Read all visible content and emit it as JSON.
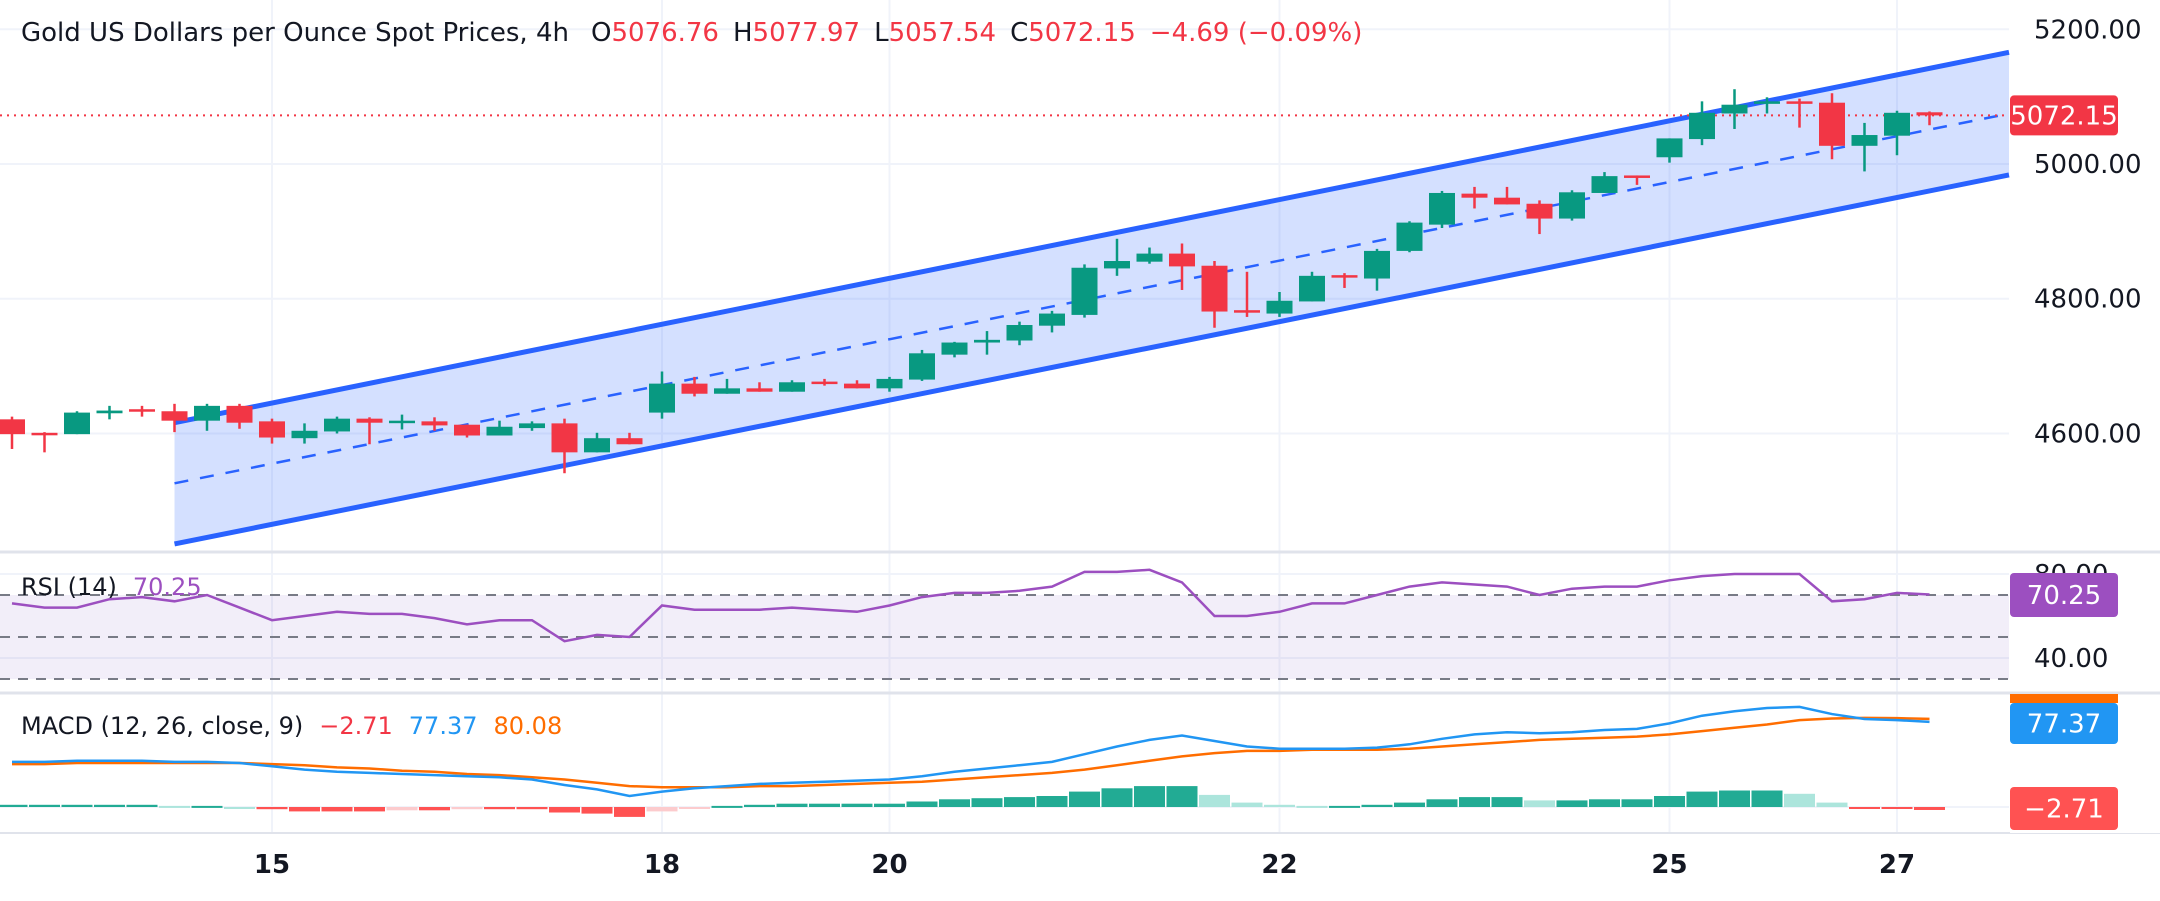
{
  "header": {
    "title": "Gold US Dollars per Ounce Spot Prices, 4h",
    "o_label": "O",
    "open": "5076.76",
    "h_label": "H",
    "high": "5077.97",
    "l_label": "L",
    "low": "5057.54",
    "c_label": "C",
    "close": "5072.15",
    "change": "−4.69 (−0.09%)"
  },
  "colors": {
    "up": "#089981",
    "down": "#f23645",
    "channel": "#2962ff",
    "channel_fill": "rgba(41,98,255,0.2)",
    "rsi": "#9c4fc0",
    "rsi_band": "rgba(126,87,194,0.1)",
    "macd": "#2196f3",
    "signal": "#ff6d00",
    "hist_up_strong": "#22ab94",
    "hist_up_weak": "#ace5dc",
    "hist_down_strong": "#ff5252",
    "hist_down_weak": "#fccbcd",
    "grid": "#f0f3fa",
    "divider": "#e0e3eb"
  },
  "rsi_legend": {
    "label": "RSI (14)",
    "value": "70.25"
  },
  "macd_legend": {
    "label": "MACD (12, 26, close, 9)",
    "hist": "−2.71",
    "macd": "77.37",
    "signal": "80.08"
  },
  "badges": {
    "price": "5072.15",
    "rsi": "70.25",
    "macd": "77.37",
    "hist": "−2.71"
  },
  "chart_data": [
    {
      "type": "candlestick",
      "title": "Gold US Dollars per Ounce Spot Prices, 4h",
      "y_ticks": [
        "5200.00",
        "5000.00",
        "4800.00",
        "4600.00"
      ],
      "y_tick_values": [
        5200,
        5000,
        4800,
        4600
      ],
      "ylim": [
        4400,
        5240
      ],
      "x_ticks": [
        {
          "label": "15",
          "bar": 9
        },
        {
          "label": "18",
          "bar": 21
        },
        {
          "label": "20",
          "bar": 28
        },
        {
          "label": "22",
          "bar": 40
        },
        {
          "label": "25",
          "bar": 52
        },
        {
          "label": "27",
          "bar": 59
        }
      ],
      "last_price": 5072.15,
      "grid": true,
      "ohlc": [
        [
          4621,
          4625,
          4577,
          4599
        ],
        [
          4601,
          4602,
          4572,
          4598
        ],
        [
          4599,
          4633,
          4599,
          4631
        ],
        [
          4630,
          4641,
          4621,
          4634
        ],
        [
          4636,
          4641,
          4625,
          4633
        ],
        [
          4633,
          4644,
          4602,
          4619
        ],
        [
          4619,
          4644,
          4604,
          4641
        ],
        [
          4641,
          4644,
          4607,
          4616
        ],
        [
          4618,
          4622,
          4585,
          4594
        ],
        [
          4593,
          4615,
          4585,
          4604
        ],
        [
          4603,
          4625,
          4600,
          4622
        ],
        [
          4622,
          4624,
          4584,
          4616
        ],
        [
          4616,
          4628,
          4606,
          4619
        ],
        [
          4618,
          4624,
          4604,
          4612
        ],
        [
          4613,
          4613,
          4594,
          4597
        ],
        [
          4597,
          4619,
          4597,
          4610
        ],
        [
          4608,
          4618,
          4604,
          4615
        ],
        [
          4615,
          4622,
          4541,
          4572
        ],
        [
          4572,
          4601,
          4572,
          4593
        ],
        [
          4593,
          4601,
          4584,
          4584
        ],
        [
          4631,
          4692,
          4622,
          4674
        ],
        [
          4674,
          4684,
          4655,
          4659
        ],
        [
          4659,
          4681,
          4659,
          4667
        ],
        [
          4667,
          4676,
          4662,
          4662
        ],
        [
          4662,
          4679,
          4662,
          4676
        ],
        [
          4677,
          4681,
          4671,
          4674
        ],
        [
          4674,
          4679,
          4667,
          4667
        ],
        [
          4667,
          4684,
          4662,
          4681
        ],
        [
          4680,
          4724,
          4678,
          4719
        ],
        [
          4717,
          4736,
          4713,
          4735
        ],
        [
          4735,
          4752,
          4717,
          4739
        ],
        [
          4738,
          4766,
          4731,
          4761
        ],
        [
          4760,
          4782,
          4750,
          4778
        ],
        [
          4776,
          4851,
          4772,
          4846
        ],
        [
          4845,
          4889,
          4834,
          4856
        ],
        [
          4855,
          4876,
          4852,
          4867
        ],
        [
          4867,
          4882,
          4813,
          4848
        ],
        [
          4849,
          4856,
          4757,
          4781
        ],
        [
          4783,
          4840,
          4773,
          4781
        ],
        [
          4778,
          4810,
          4773,
          4797
        ],
        [
          4796,
          4840,
          4796,
          4834
        ],
        [
          4835,
          4838,
          4816,
          4833
        ],
        [
          4830,
          4874,
          4812,
          4871
        ],
        [
          4871,
          4915,
          4869,
          4913
        ],
        [
          4910,
          4960,
          4905,
          4957
        ],
        [
          4956,
          4966,
          4934,
          4950
        ],
        [
          4950,
          4966,
          4940,
          4940
        ],
        [
          4941,
          4946,
          4896,
          4919
        ],
        [
          4919,
          4961,
          4916,
          4958
        ],
        [
          4957,
          4988,
          4957,
          4982
        ],
        [
          4983,
          4983,
          4969,
          4981
        ],
        [
          5010,
          5038,
          5002,
          5038
        ],
        [
          5037,
          5093,
          5028,
          5076
        ],
        [
          5075,
          5111,
          5052,
          5088
        ],
        [
          5090,
          5099,
          5075,
          5093
        ],
        [
          5093,
          5097,
          5054,
          5090
        ],
        [
          5091,
          5105,
          5007,
          5027
        ],
        [
          5027,
          5061,
          4989,
          5043
        ],
        [
          5042,
          5079,
          5013,
          5076
        ],
        [
          5076.76,
          5077.97,
          5057.54,
          5072.15
        ]
      ],
      "channel": {
        "start_bar": 6,
        "end_bar": 60,
        "extend_right": true,
        "upper": [
          4616,
          5142
        ],
        "lower": [
          4436,
          4960
        ],
        "middle": [
          4526,
          5051
        ]
      }
    },
    {
      "type": "line",
      "series": [
        {
          "name": "RSI (14)",
          "values": [
            66,
            64,
            64,
            68,
            69,
            67,
            70,
            64,
            58,
            60,
            62,
            61,
            61,
            59,
            56,
            58,
            58,
            48,
            51,
            50,
            65,
            63,
            63,
            63,
            64,
            63,
            62,
            65,
            69,
            71,
            71,
            72,
            74,
            81,
            81,
            82,
            76,
            60,
            60,
            62,
            66,
            66,
            70,
            74,
            76,
            75,
            74,
            70,
            73,
            74,
            74,
            77,
            79,
            80,
            80,
            80,
            67,
            68,
            71,
            70.25
          ]
        }
      ],
      "y_ticks": [
        "80.00",
        "40.00"
      ],
      "y_tick_values": [
        80,
        40
      ],
      "levels": [
        70,
        50,
        30
      ],
      "band": [
        30,
        70
      ]
    },
    {
      "type": "line",
      "series": [
        {
          "name": "MACD",
          "values": [
            41,
            41,
            42,
            42,
            42,
            41,
            41,
            40,
            37,
            34,
            32,
            31,
            30,
            29,
            28,
            27,
            25,
            20,
            16,
            10,
            14,
            17,
            19,
            21,
            22,
            23,
            24,
            25,
            28,
            32,
            35,
            38,
            41,
            48,
            55,
            61,
            65,
            60,
            55,
            53,
            53,
            53,
            54,
            57,
            62,
            66,
            68,
            67,
            68,
            70,
            71,
            76,
            83,
            87,
            90,
            91,
            84.5,
            80,
            79,
            77.37
          ]
        },
        {
          "name": "Signal",
          "values": [
            39,
            39,
            40,
            40,
            40,
            40,
            40,
            40,
            39,
            38,
            36,
            35,
            33,
            32,
            30,
            29,
            27,
            25,
            22,
            19,
            18,
            18,
            18,
            19,
            19,
            20,
            21,
            22,
            23,
            25,
            27,
            29,
            31,
            34,
            38,
            42,
            46,
            49,
            51,
            51,
            52,
            52,
            52,
            53,
            55,
            57,
            59,
            61,
            62,
            63,
            64,
            66,
            69,
            72,
            75,
            79,
            80.5,
            81,
            80.8,
            80.08
          ]
        },
        {
          "name": "Histogram",
          "values": [
            2,
            2,
            2,
            2,
            2,
            1,
            1,
            0,
            -2,
            -4,
            -4,
            -4,
            -3,
            -3,
            -2,
            -2,
            -2,
            -5,
            -6,
            -9,
            -4,
            -1,
            1,
            2,
            3,
            3,
            3,
            3,
            5,
            7,
            8,
            9,
            10,
            14,
            17,
            19,
            19,
            11,
            4,
            2,
            1,
            1,
            2,
            4,
            7,
            9,
            9,
            6,
            6,
            7,
            7,
            10,
            14,
            15,
            15,
            12,
            4,
            -1,
            -1.8,
            -2.71
          ]
        }
      ]
    }
  ]
}
